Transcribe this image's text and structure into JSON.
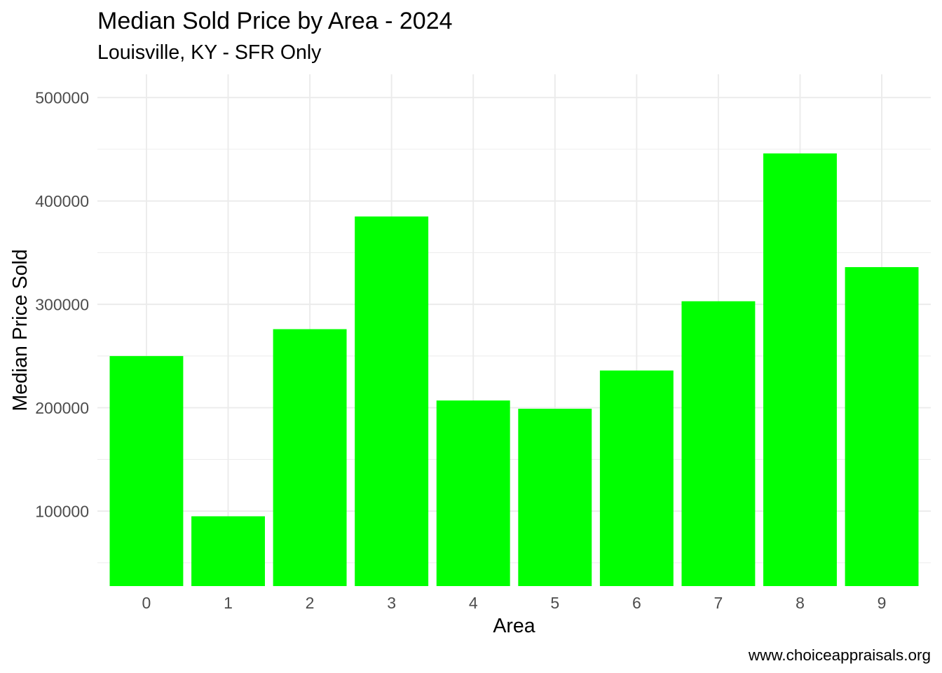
{
  "colors": {
    "bar": "#00FF00",
    "gridline": "#EBEBEB",
    "tick_label": "#4D4D4D"
  },
  "chart_data": {
    "type": "bar",
    "title": "Median Sold Price by Area - 2024",
    "subtitle": "Louisville, KY - SFR Only",
    "caption": "www.choiceappraisals.org",
    "xlabel": "Area",
    "ylabel": "Median Price Sold",
    "categories": [
      "0",
      "1",
      "2",
      "3",
      "4",
      "5",
      "6",
      "7",
      "8",
      "9"
    ],
    "values": [
      250000,
      95000,
      276000,
      385000,
      207000,
      199000,
      236000,
      303000,
      446000,
      336000
    ],
    "ylim": [
      27500,
      522500
    ],
    "yticks": [
      100000,
      200000,
      300000,
      400000,
      500000
    ],
    "grid": true
  }
}
